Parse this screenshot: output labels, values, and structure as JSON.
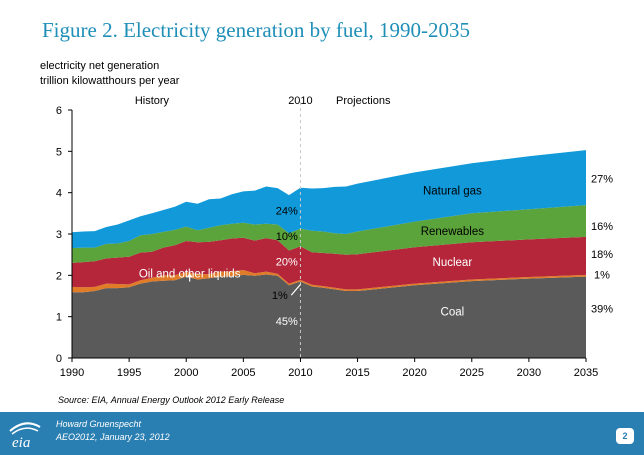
{
  "slide": {
    "title": "Figure 2.  Electricity generation by fuel, 1990-2035",
    "source": "Source:  EIA, Annual Energy Outlook 2012 Early Release",
    "footer_name": "Howard Gruenspecht",
    "footer_event": "AEO2012, January 23, 2012",
    "page_number": "2",
    "logo_text": "eia"
  },
  "chart_data": {
    "type": "area",
    "stacked": true,
    "ylabel_lines": [
      "electricity net generation",
      "trillion kilowatthours per year"
    ],
    "ylim": [
      0,
      6
    ],
    "y_ticks": [
      "0",
      "1",
      "2",
      "3",
      "4",
      "5",
      "6"
    ],
    "x_ticks": [
      "1990",
      "1995",
      "2000",
      "2005",
      "2010",
      "2015",
      "2020",
      "2025",
      "2030",
      "2035"
    ],
    "divider": {
      "year": 2010,
      "label": "2010"
    },
    "period_labels": {
      "history": "History",
      "projections": "Projections"
    },
    "x": [
      1990,
      1991,
      1992,
      1993,
      1994,
      1995,
      1996,
      1997,
      1998,
      1999,
      2000,
      2001,
      2002,
      2003,
      2004,
      2005,
      2006,
      2007,
      2008,
      2009,
      2010,
      2011,
      2012,
      2013,
      2014,
      2015,
      2020,
      2025,
      2030,
      2035
    ],
    "series": [
      {
        "name": "Coal",
        "color": "#5a5a5a",
        "values": [
          1.59,
          1.59,
          1.62,
          1.69,
          1.69,
          1.71,
          1.8,
          1.85,
          1.87,
          1.88,
          1.97,
          1.9,
          1.93,
          1.97,
          1.98,
          2.01,
          1.99,
          2.02,
          1.99,
          1.76,
          1.85,
          1.73,
          1.7,
          1.66,
          1.62,
          1.62,
          1.76,
          1.86,
          1.92,
          1.97
        ]
      },
      {
        "name": "Oil and other liquids",
        "color": "#e07b28",
        "values": [
          0.13,
          0.12,
          0.1,
          0.11,
          0.1,
          0.07,
          0.08,
          0.09,
          0.13,
          0.12,
          0.11,
          0.13,
          0.1,
          0.12,
          0.12,
          0.12,
          0.06,
          0.07,
          0.05,
          0.04,
          0.04,
          0.04,
          0.04,
          0.04,
          0.04,
          0.04,
          0.04,
          0.04,
          0.04,
          0.04
        ]
      },
      {
        "name": "Nuclear",
        "color": "#b5263a",
        "values": [
          0.58,
          0.61,
          0.62,
          0.61,
          0.64,
          0.67,
          0.67,
          0.63,
          0.67,
          0.73,
          0.75,
          0.77,
          0.78,
          0.76,
          0.79,
          0.78,
          0.79,
          0.81,
          0.81,
          0.8,
          0.81,
          0.79,
          0.8,
          0.82,
          0.84,
          0.85,
          0.88,
          0.9,
          0.91,
          0.92
        ]
      },
      {
        "name": "Renewables",
        "color": "#5ba33b",
        "values": [
          0.36,
          0.35,
          0.33,
          0.35,
          0.34,
          0.38,
          0.42,
          0.43,
          0.38,
          0.37,
          0.35,
          0.29,
          0.34,
          0.36,
          0.36,
          0.36,
          0.39,
          0.35,
          0.38,
          0.42,
          0.43,
          0.52,
          0.52,
          0.5,
          0.5,
          0.55,
          0.62,
          0.7,
          0.73,
          0.77
        ]
      },
      {
        "name": "Natural gas",
        "color": "#1199d9",
        "values": [
          0.38,
          0.39,
          0.4,
          0.41,
          0.46,
          0.5,
          0.46,
          0.5,
          0.53,
          0.56,
          0.6,
          0.64,
          0.69,
          0.65,
          0.71,
          0.76,
          0.82,
          0.9,
          0.88,
          0.92,
          0.99,
          1.02,
          1.05,
          1.12,
          1.15,
          1.16,
          1.19,
          1.21,
          1.28,
          1.33
        ]
      }
    ],
    "labels": {
      "natural_gas": "Natural gas",
      "renewables": "Renewables",
      "nuclear": "Nuclear",
      "coal": "Coal",
      "oil": "Oil and other liquids"
    },
    "shares_2010": {
      "natural_gas": "24%",
      "renewables": "10%",
      "nuclear": "20%",
      "oil": "1%",
      "coal": "45%"
    },
    "shares_2035": {
      "natural_gas": "27%",
      "renewables": "16%",
      "nuclear": "18%",
      "oil": "1%",
      "coal": "39%"
    }
  }
}
